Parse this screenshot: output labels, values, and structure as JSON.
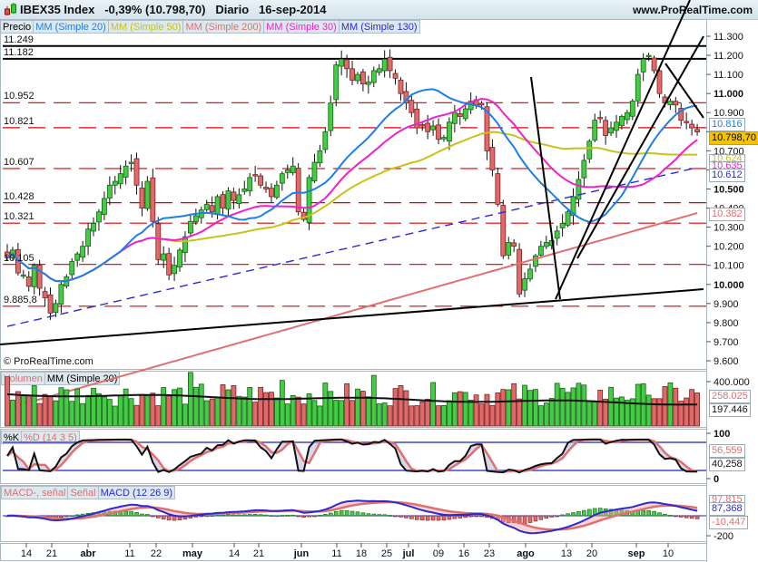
{
  "header": {
    "title": "IBEX35 Index   -0,39% (10.798,70)   Diario   16-sep-2014",
    "instrument": "IBEX35 Index",
    "change": "-0,39% (10.798,70)",
    "period": "Diario",
    "date": "16-sep-2014",
    "site": "www.ProRealTime.com"
  },
  "price_legend": [
    {
      "label": "Precio",
      "color": "#000000"
    },
    {
      "label": "MM (Simple 20)",
      "color": "#1e7ee8"
    },
    {
      "label": "MM (Simple 50)",
      "color": "#c8c21a"
    },
    {
      "label": "MM (Simple 200)",
      "color": "#e07070"
    },
    {
      "label": "MM (Simple 30)",
      "color": "#ee22cc"
    },
    {
      "label": "MM (Simple 130)",
      "color": "#2a2ad0"
    }
  ],
  "watermark": "© ProRealTime.com",
  "volume_legend": [
    {
      "label": "Volumen",
      "color": "#e07070"
    },
    {
      "label": "MM (Simple 20)",
      "color": "#000000"
    }
  ],
  "stoch_legend": [
    {
      "label": "%K",
      "color": "#000000"
    },
    {
      "label": "%D (14 3 5)",
      "color": "#e07070"
    }
  ],
  "macd_legend": [
    {
      "label": "MACD-, señal",
      "color": "#e07070"
    },
    {
      "label": "Señal",
      "color": "#e07070"
    },
    {
      "label": "MACD (12 26 9)",
      "color": "#2a2ad0"
    }
  ],
  "price_axis": {
    "ticks": [
      "11.300",
      "11.200",
      "11.100",
      "11.000",
      "10.900",
      "10.800",
      "10.700",
      "10.600",
      "10.500",
      "10.400",
      "10.300",
      "10.200",
      "10.100",
      "10.000",
      "9.900",
      "9.800",
      "9.700",
      "9.600"
    ],
    "bold_ticks": [
      "11.000",
      "10.500",
      "10.000"
    ],
    "labels": {
      "ma20": "10.816",
      "last": "10.798,70",
      "ma50": "10.624",
      "ma30": "10.635",
      "ma130": "10.612",
      "ma200": "10.382"
    }
  },
  "levels": {
    "solid": [
      "11.249",
      "11.182"
    ],
    "dashed": [
      "10.952",
      "10.821",
      "10.607",
      "10.428",
      "10.321",
      "10.105",
      "9.885,8"
    ]
  },
  "volume_axis": {
    "ticks": [
      "400.000"
    ],
    "labels": {
      "volume": "258.025",
      "ma": "197.446"
    }
  },
  "stoch_axis": {
    "ticks": [
      "100",
      "0"
    ],
    "labels": {
      "d": "56,559",
      "k": "40,258"
    }
  },
  "macd_axis": {
    "ticks": [
      "-200"
    ],
    "labels": {
      "signal": "97,815",
      "macd": "87,368",
      "hist": "-10,447"
    }
  },
  "x_axis": {
    "labels": [
      {
        "text": "14",
        "x": 29,
        "bold": false
      },
      {
        "text": "21",
        "x": 57,
        "bold": false
      },
      {
        "text": "abr",
        "x": 97,
        "bold": true
      },
      {
        "text": "11",
        "x": 143,
        "bold": false
      },
      {
        "text": "22",
        "x": 172,
        "bold": false
      },
      {
        "text": "may",
        "x": 212,
        "bold": true
      },
      {
        "text": "14",
        "x": 258,
        "bold": false
      },
      {
        "text": "21",
        "x": 285,
        "bold": false
      },
      {
        "text": "jun",
        "x": 332,
        "bold": true
      },
      {
        "text": "11",
        "x": 371,
        "bold": false
      },
      {
        "text": "18",
        "x": 398,
        "bold": false
      },
      {
        "text": "25",
        "x": 426,
        "bold": false
      },
      {
        "text": "jul",
        "x": 450,
        "bold": true
      },
      {
        "text": "09",
        "x": 483,
        "bold": false
      },
      {
        "text": "16",
        "x": 511,
        "bold": false
      },
      {
        "text": "23",
        "x": 539,
        "bold": false
      },
      {
        "text": "ago",
        "x": 579,
        "bold": true
      },
      {
        "text": "13",
        "x": 624,
        "bold": false
      },
      {
        "text": "20",
        "x": 652,
        "bold": false
      },
      {
        "text": "sep",
        "x": 701,
        "bold": true
      },
      {
        "text": "10",
        "x": 736,
        "bold": false
      }
    ]
  },
  "colors": {
    "bull": "#44cc44",
    "bear": "#e06a6a",
    "ma20": "#1e7ee8",
    "ma50": "#c8c21a",
    "ma200": "#e07070",
    "ma30": "#ee22cc",
    "ma130": "#2a2ad0",
    "level": "#e00000",
    "last_bg": "#f5c400"
  },
  "chart_data": {
    "type": "candlestick",
    "title": "IBEX35 Index Diario 16-sep-2014",
    "last": 10798.7,
    "change_pct": -0.39,
    "ylim": [
      9600,
      11300
    ],
    "x_range": "mid-mar 2014 to 16-sep-2014",
    "x_tick_labels": [
      "14",
      "21",
      "abr",
      "11",
      "22",
      "may",
      "14",
      "21",
      "jun",
      "11",
      "18",
      "25",
      "jul",
      "09",
      "16",
      "23",
      "ago",
      "13",
      "20",
      "sep",
      "10"
    ],
    "moving_averages_last": {
      "MM20": 10816,
      "MM50": 10624,
      "MM30": 10635,
      "MM130": 10612,
      "MM200": 10382
    },
    "horizontal_levels": [
      11249,
      11182,
      10952,
      10821,
      10607,
      10428,
      10321,
      10105,
      9885.8
    ],
    "approx_closes": [
      10140,
      10180,
      10060,
      10050,
      9990,
      10100,
      9980,
      9930,
      9850,
      9900,
      10000,
      10040,
      10120,
      10160,
      10200,
      10290,
      10320,
      10380,
      10450,
      10520,
      10540,
      10580,
      10620,
      10640,
      10520,
      10400,
      10540,
      10330,
      10130,
      10160,
      10050,
      10100,
      10180,
      10250,
      10330,
      10360,
      10390,
      10420,
      10380,
      10460,
      10400,
      10490,
      10440,
      10470,
      10500,
      10560,
      10570,
      10520,
      10500,
      10460,
      10520,
      10580,
      10600,
      10620,
      10380,
      10340,
      10560,
      10640,
      10700,
      10800,
      10950,
      11150,
      11180,
      11130,
      11070,
      11100,
      11050,
      11060,
      11120,
      11130,
      11180,
      11120,
      11080,
      11000,
      10950,
      10900,
      10820,
      10830,
      10800,
      10830,
      10760,
      10770,
      10850,
      10900,
      10880,
      10920,
      10960,
      10940,
      10940,
      10700,
      10600,
      10420,
      10150,
      10220,
      10200,
      9950,
      10030,
      10080,
      10150,
      10200,
      10220,
      10230,
      10280,
      10320,
      10380,
      10460,
      10550,
      10650,
      10750,
      10860,
      10870,
      10780,
      10820,
      10850,
      10880,
      10900,
      10960,
      11100,
      11180,
      11200,
      11120,
      11000,
      10950,
      10960,
      10940,
      10860,
      10850,
      10820,
      10798.7
    ],
    "volume": {
      "last": 258025,
      "ma20": 197446,
      "tick": 400000
    },
    "stochastic": {
      "params": "14 3 5",
      "k_last": 40.258,
      "d_last": 56.559,
      "range": [
        0,
        100
      ]
    },
    "macd": {
      "params": "12 26 9",
      "macd_last": 87.368,
      "signal_last": 97.815,
      "hist_last": -10.447
    }
  }
}
